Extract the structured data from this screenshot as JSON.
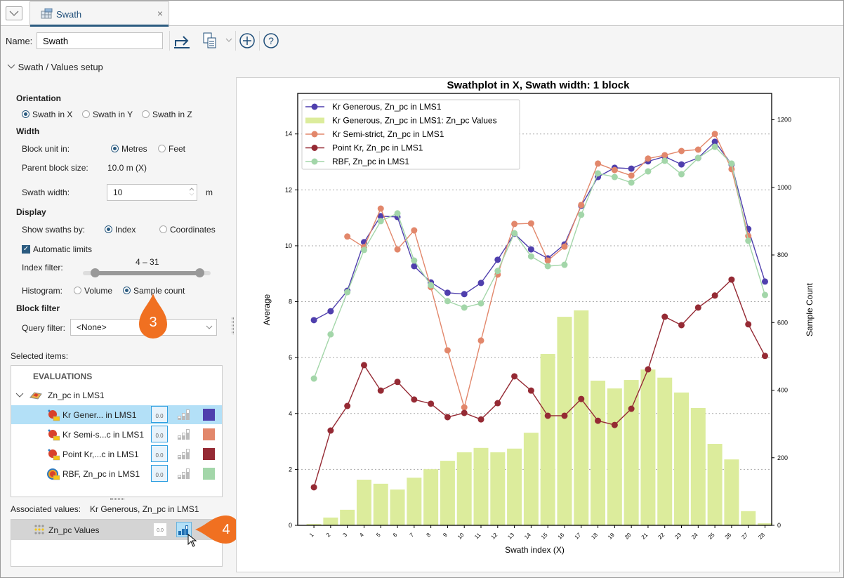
{
  "tab": {
    "title": "Swath",
    "close": "×"
  },
  "toolbar": {
    "name_label": "Name:",
    "name_value": "Swath"
  },
  "setup": {
    "title": "Swath / Values setup"
  },
  "orientation": {
    "heading": "Orientation",
    "options": [
      "Swath in X",
      "Swath in Y",
      "Swath in Z"
    ],
    "selected": "Swath in X"
  },
  "width": {
    "heading": "Width",
    "block_unit_label": "Block unit in:",
    "units": [
      "Metres",
      "Feet"
    ],
    "unit_selected": "Metres",
    "parent_block_label": "Parent block size:",
    "parent_block_value": "10.0 m  (X)",
    "swath_width_label": "Swath width:",
    "swath_width_value": "10",
    "swath_width_unit": "m"
  },
  "display": {
    "heading": "Display",
    "show_by_label": "Show swaths by:",
    "show_by_options": [
      "Index",
      "Coordinates"
    ],
    "show_by_selected": "Index",
    "auto_limits_label": "Automatic limits",
    "auto_limits_checked": true,
    "index_filter_label": "Index filter:",
    "index_filter_value": "4 – 31",
    "histogram_label": "Histogram:",
    "histogram_options": [
      "Volume",
      "Sample count"
    ],
    "histogram_selected": "Sample count"
  },
  "block_filter": {
    "heading": "Block filter",
    "query_label": "Query filter:",
    "query_value": "<None>"
  },
  "selected_items": {
    "label": "Selected items:",
    "header": "EVALUATIONS",
    "group": "Zn_pc in LMS1",
    "items": [
      {
        "label": "Kr Gener... in LMS1",
        "color": "#4f3fad",
        "selected": true
      },
      {
        "label": "Kr Semi-s...c in LMS1",
        "color": "#e2876b",
        "selected": false
      },
      {
        "label": "Point Kr,...c in LMS1",
        "color": "#952a34",
        "selected": false
      },
      {
        "label": "RBF, Zn_pc in LMS1",
        "color": "#a3d6a9",
        "selected": false
      }
    ],
    "value_icon_text": "0.0"
  },
  "associated": {
    "label": "Associated values:",
    "value": "Kr Generous, Zn_pc in LMS1",
    "items": [
      {
        "label": "Zn_pc Values"
      }
    ]
  },
  "callouts": [
    "3",
    "4"
  ],
  "chart_data": {
    "type": "line+bar",
    "title": "Swathplot in X, Swath width: 1 block",
    "xlabel": "Swath index (X)",
    "ylabel": "Average",
    "y2label": "Sample Count",
    "x": [
      1,
      2,
      3,
      4,
      5,
      6,
      7,
      8,
      9,
      10,
      11,
      12,
      13,
      14,
      15,
      16,
      17,
      18,
      19,
      20,
      21,
      22,
      23,
      24,
      25,
      26,
      27,
      28
    ],
    "xlim": [
      0.03,
      28.4
    ],
    "ylim": [
      0,
      15.45
    ],
    "y2lim": [
      0,
      1278
    ],
    "yticks": [
      0,
      2,
      4,
      6,
      8,
      10,
      12,
      14
    ],
    "y2ticks": [
      0,
      200,
      400,
      600,
      800,
      1000,
      1200
    ],
    "grid": "horizontal dotted",
    "legend": "top-left",
    "series": [
      {
        "name": "Kr Generous, Zn_pc in LMS1",
        "color": "#4f3fad",
        "axis": "left",
        "values": [
          7.34,
          7.66,
          8.39,
          10.13,
          11.06,
          11.03,
          9.27,
          8.69,
          8.32,
          8.27,
          8.67,
          9.5,
          10.43,
          9.87,
          9.55,
          10.05,
          11.43,
          12.46,
          12.79,
          12.76,
          13.02,
          13.19,
          12.91,
          13.14,
          13.72,
          12.91,
          10.6,
          8.72
        ]
      },
      {
        "name": "Kr Generous, Zn_pc in LMS1: Zn_pc Values",
        "color": "#dcec9c",
        "axis": "right",
        "kind": "bar",
        "values": [
          4,
          23,
          46,
          135,
          123,
          106,
          141,
          166,
          191,
          216,
          229,
          216,
          227,
          274,
          507,
          617,
          636,
          428,
          405,
          430,
          461,
          437,
          393,
          347,
          241,
          195,
          42,
          6
        ]
      },
      {
        "name": "Kr Semi-strict, Zn_pc in LMS1",
        "color": "#e2876b",
        "axis": "left",
        "values": [
          null,
          null,
          10.33,
          9.95,
          11.33,
          9.87,
          10.55,
          8.52,
          6.26,
          4.22,
          6.61,
          8.97,
          10.78,
          10.8,
          9.47,
          9.97,
          11.46,
          12.94,
          12.71,
          12.51,
          13.12,
          13.24,
          13.39,
          13.44,
          14.0,
          12.74,
          10.35,
          null
        ]
      },
      {
        "name": "Point Kr, Zn_pc in LMS1",
        "color": "#952a34",
        "axis": "left",
        "values": [
          1.36,
          3.39,
          4.27,
          5.73,
          4.82,
          5.13,
          4.5,
          4.35,
          3.87,
          4.02,
          3.79,
          4.37,
          5.33,
          4.82,
          3.92,
          3.92,
          4.52,
          3.74,
          3.59,
          4.17,
          5.58,
          7.46,
          7.16,
          7.79,
          8.22,
          8.79,
          7.19,
          6.06
        ]
      },
      {
        "name": "RBF, Zn_pc in LMS1",
        "color": "#a3d6a9",
        "axis": "left",
        "values": [
          5.25,
          6.83,
          8.34,
          9.85,
          10.88,
          11.16,
          9.47,
          8.59,
          8.02,
          7.79,
          7.94,
          9.1,
          10.45,
          9.62,
          9.27,
          9.32,
          11.11,
          12.59,
          12.46,
          12.26,
          12.66,
          13.04,
          12.56,
          13.14,
          13.54,
          12.94,
          10.18,
          8.24
        ]
      }
    ]
  }
}
